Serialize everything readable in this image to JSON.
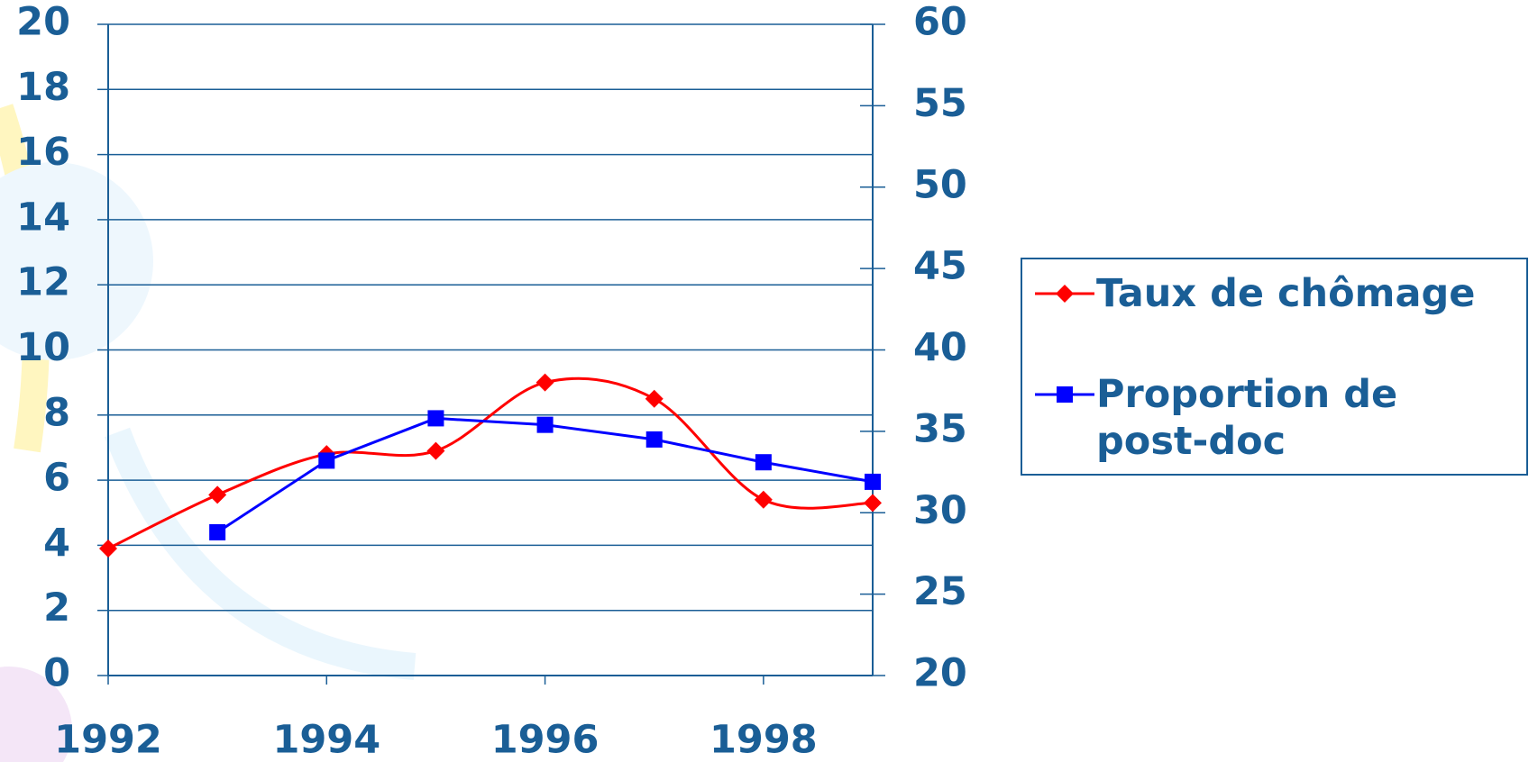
{
  "chart_data": {
    "type": "line",
    "x": [
      1992,
      1993,
      1994,
      1995,
      1996,
      1997,
      1998,
      1999
    ],
    "xlim": [
      1992,
      1999
    ],
    "xticks": [
      1992,
      1994,
      1996,
      1998
    ],
    "ylim": [
      0,
      20
    ],
    "yticks": [
      0,
      2,
      4,
      6,
      8,
      10,
      12,
      14,
      16,
      18,
      20
    ],
    "y2lim": [
      20,
      60
    ],
    "y2ticks": [
      20,
      25,
      30,
      35,
      40,
      45,
      50,
      55,
      60
    ],
    "grid": true,
    "legend": "right",
    "series": [
      {
        "name": "Taux de chômage",
        "color": "#ff0000",
        "marker": "diamond",
        "smooth": true,
        "values": [
          3.9,
          5.55,
          6.8,
          6.9,
          9.0,
          8.5,
          5.4,
          5.3
        ]
      },
      {
        "name": "Proportion de post-doc",
        "color": "#0000ff",
        "marker": "square",
        "axis": "y2",
        "values": [
          null,
          28.8,
          33.2,
          35.8,
          35.4,
          34.5,
          33.1,
          31.9
        ]
      }
    ]
  }
}
